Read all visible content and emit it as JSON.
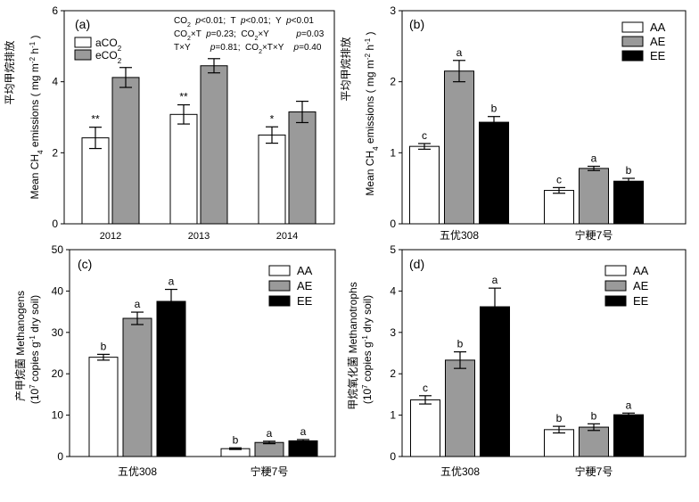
{
  "chart_data": [
    {
      "panel": "(a)",
      "type": "bar",
      "ylabel_cn": "平均甲烷排放",
      "ylabel_en": "Mean CH4 emissions ( mg m-2 h-1 )",
      "ylim": [
        0,
        6
      ],
      "yticks": [
        "0",
        "2",
        "4",
        "6"
      ],
      "categories": [
        "2012",
        "2013",
        "2014"
      ],
      "series": [
        {
          "name": "aCO2",
          "color": "#ffffff",
          "values": [
            2.42,
            3.08,
            2.5
          ],
          "errors": [
            0.3,
            0.27,
            0.23
          ]
        },
        {
          "name": "eCO2",
          "color": "#9a9a9a",
          "values": [
            4.12,
            4.45,
            3.15
          ],
          "errors": [
            0.28,
            0.2,
            0.3
          ]
        }
      ],
      "labels": [
        [
          "**",
          ""
        ],
        [
          "**",
          ""
        ],
        [
          "*",
          ""
        ]
      ],
      "stats": [
        "CO2  p<0.01;  T  p<0.01;  Y  p<0.01",
        "CO2×T  p=0.23;  CO2×Y          p=0.03",
        "T×Y        p=0.81;  CO2×T×Y    p=0.40"
      ],
      "legend": "top-left"
    },
    {
      "panel": "(b)",
      "type": "bar",
      "ylabel_cn": "平均甲烷排放",
      "ylabel_en": "Mean CH4 emissions ( mg m-2 h-1 )",
      "ylim": [
        0,
        3
      ],
      "yticks": [
        "0",
        "1",
        "2",
        "3"
      ],
      "categories": [
        "五优308",
        "宁粳7号"
      ],
      "series": [
        {
          "name": "AA",
          "color": "#ffffff",
          "values": [
            1.09,
            0.47
          ],
          "errors": [
            0.04,
            0.04
          ]
        },
        {
          "name": "AE",
          "color": "#9a9a9a",
          "values": [
            2.15,
            0.78
          ],
          "errors": [
            0.15,
            0.03
          ]
        },
        {
          "name": "EE",
          "color": "#000000",
          "values": [
            1.43,
            0.6
          ],
          "errors": [
            0.08,
            0.04
          ]
        }
      ],
      "labels": [
        [
          "c",
          "a",
          "b"
        ],
        [
          "c",
          "a",
          "b"
        ]
      ],
      "legend": "top-right"
    },
    {
      "panel": "(c)",
      "type": "bar",
      "ylabel_cn": "产甲烷菌 Methanogens",
      "ylabel_en": "(107 copies g-1 dry soil)",
      "ylim": [
        0,
        50
      ],
      "yticks": [
        "0",
        "10",
        "20",
        "30",
        "40",
        "50"
      ],
      "categories": [
        "五优308",
        "宁粳7号"
      ],
      "series": [
        {
          "name": "AA",
          "color": "#ffffff",
          "values": [
            24.0,
            1.9
          ],
          "errors": [
            0.7,
            0.2
          ]
        },
        {
          "name": "AE",
          "color": "#9a9a9a",
          "values": [
            33.4,
            3.4
          ],
          "errors": [
            1.5,
            0.3
          ]
        },
        {
          "name": "EE",
          "color": "#000000",
          "values": [
            37.5,
            3.8
          ],
          "errors": [
            2.9,
            0.3
          ]
        }
      ],
      "labels": [
        [
          "b",
          "a",
          "a"
        ],
        [
          "b",
          "a",
          "a"
        ]
      ],
      "legend": "top-right"
    },
    {
      "panel": "(d)",
      "type": "bar",
      "ylabel_cn": "甲烷氧化菌 Methanotrophs",
      "ylabel_en": "(107 copies g-1 dry soil)",
      "ylim": [
        0,
        5
      ],
      "yticks": [
        "0",
        "1",
        "2",
        "3",
        "4",
        "5"
      ],
      "categories": [
        "五优308",
        "宁粳7号"
      ],
      "series": [
        {
          "name": "AA",
          "color": "#ffffff",
          "values": [
            1.37,
            0.65
          ],
          "errors": [
            0.1,
            0.08
          ]
        },
        {
          "name": "AE",
          "color": "#9a9a9a",
          "values": [
            2.33,
            0.71
          ],
          "errors": [
            0.2,
            0.08
          ]
        },
        {
          "name": "EE",
          "color": "#000000",
          "values": [
            3.62,
            1.01
          ],
          "errors": [
            0.45,
            0.04
          ]
        }
      ],
      "labels": [
        [
          "c",
          "b",
          "a"
        ],
        [
          "b",
          "b",
          "a"
        ]
      ],
      "legend": "top-right"
    }
  ]
}
